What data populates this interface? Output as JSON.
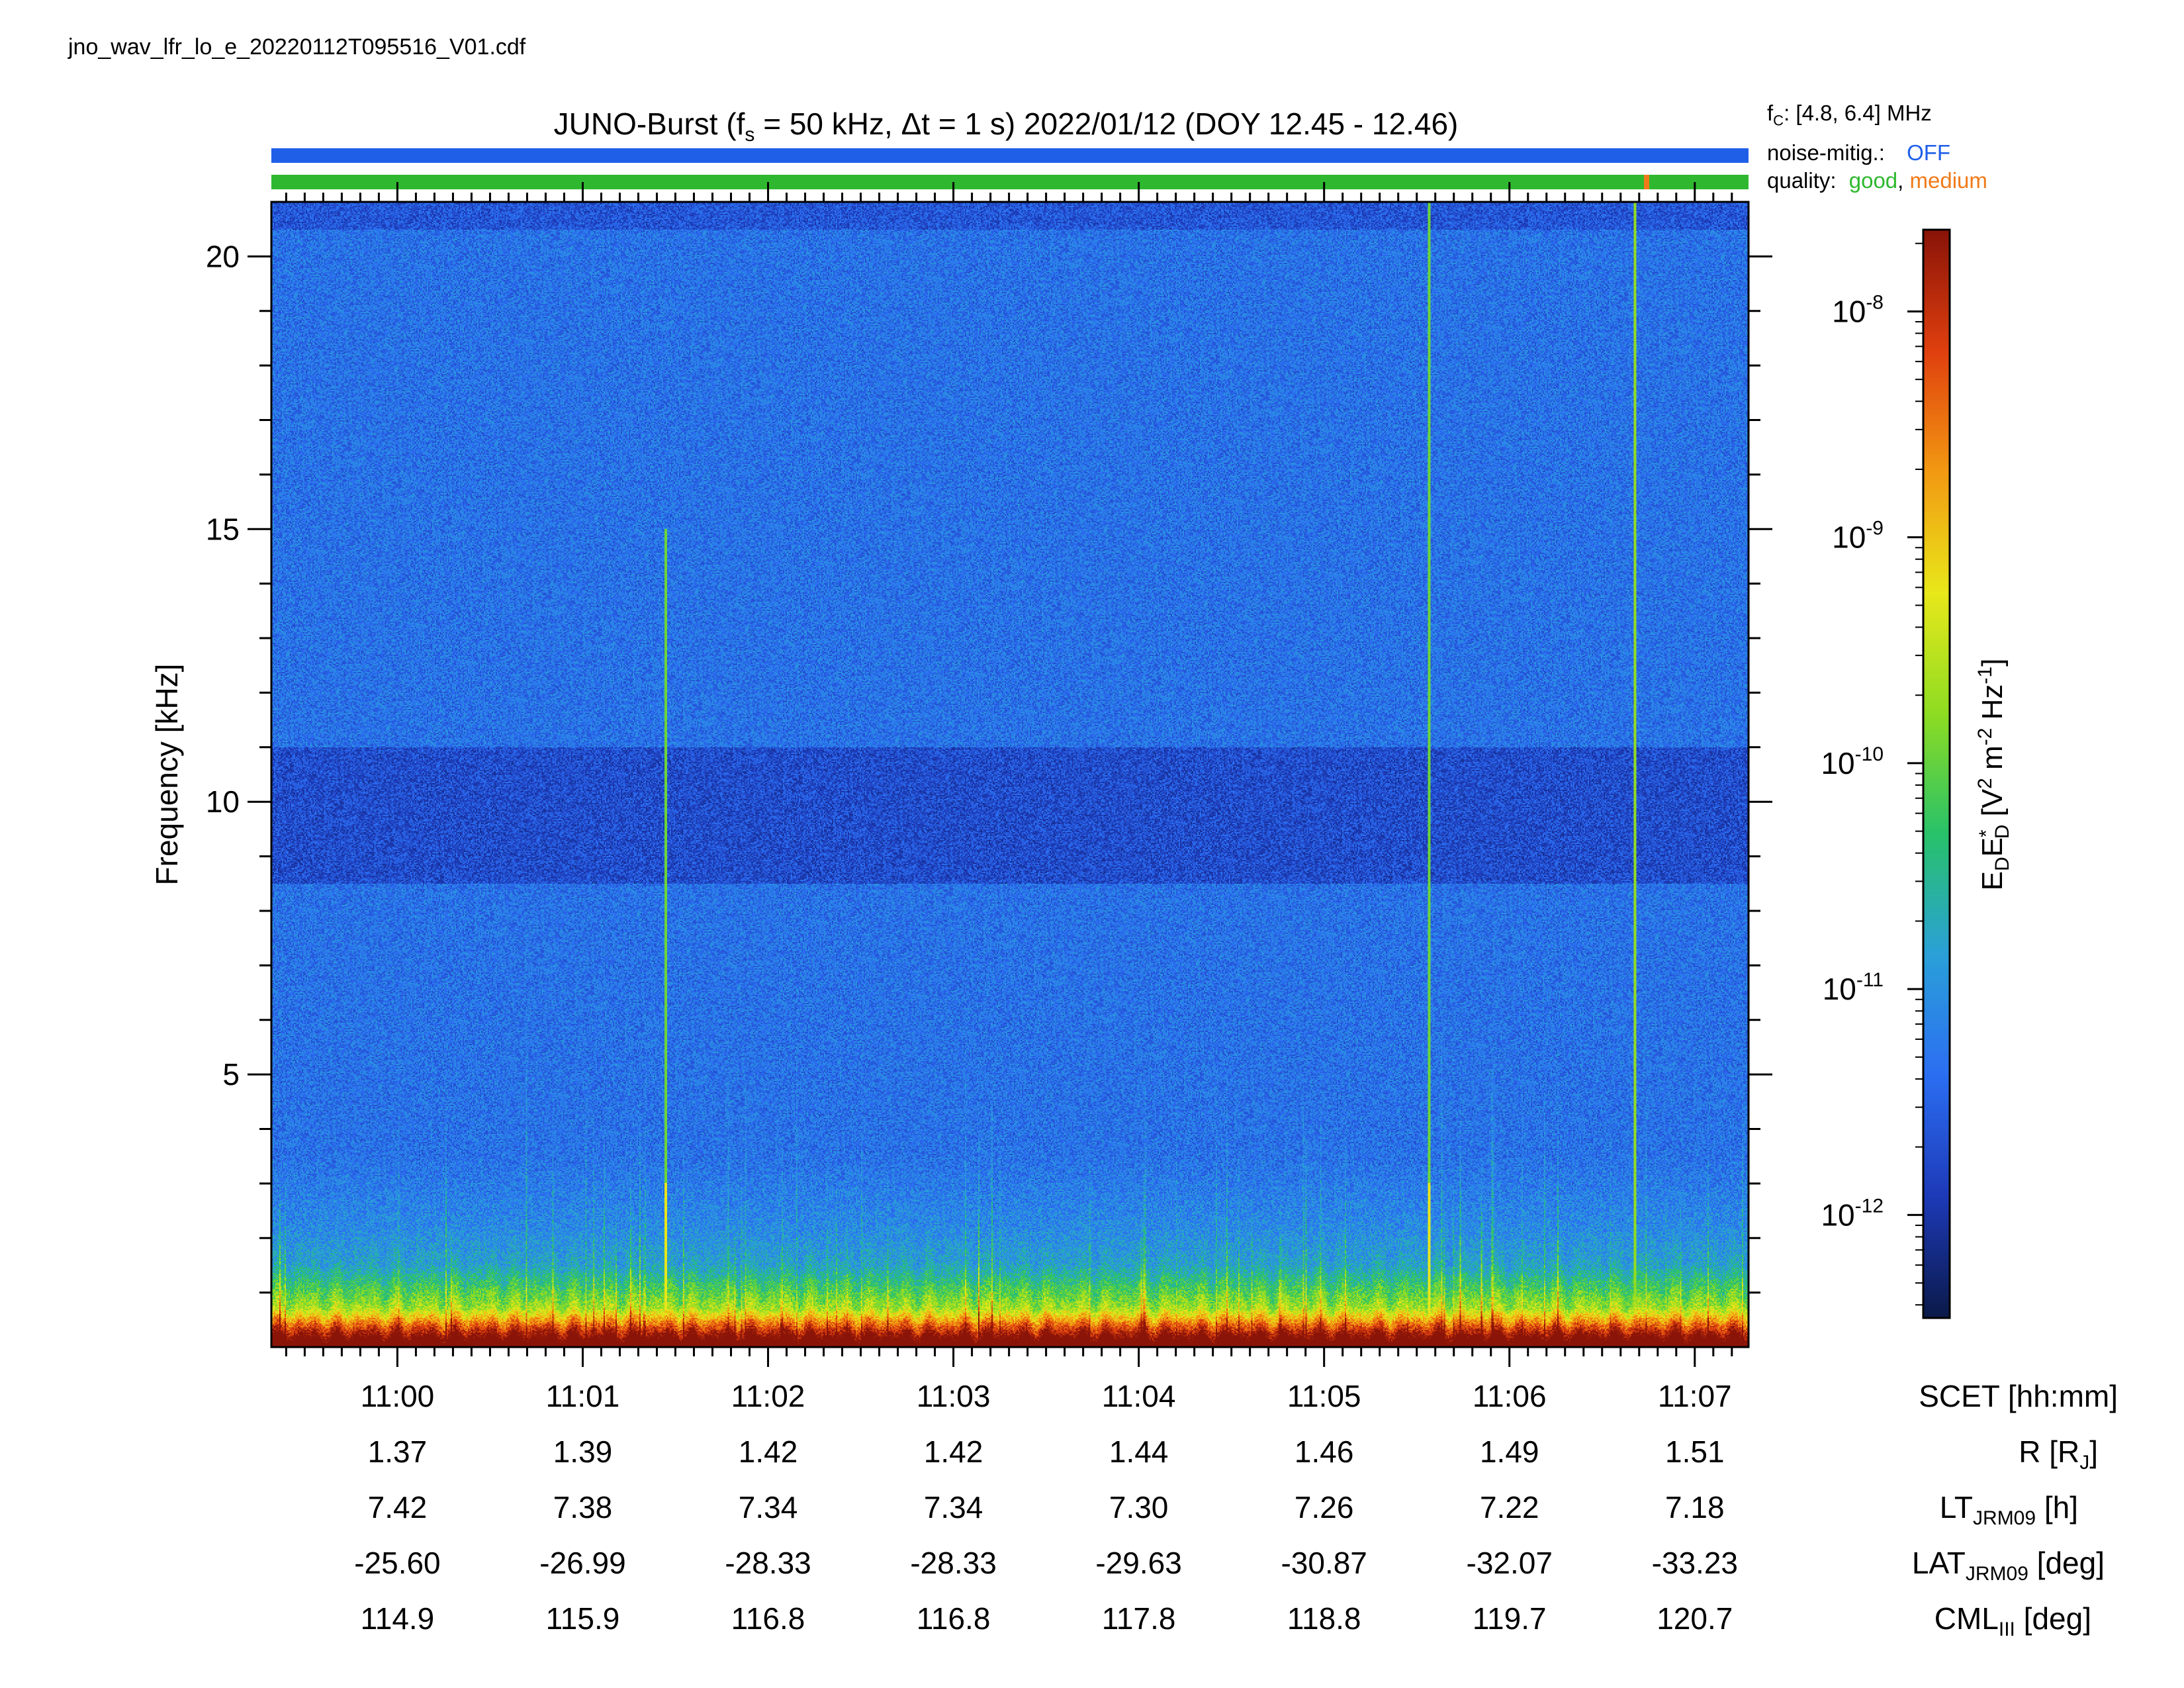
{
  "file_label": "jno_wav_lfr_lo_e_20220112T095516_V01.cdf",
  "header": {
    "title_prefix": "JUNO-Burst (f",
    "title_sub": "s",
    "title_mid": " = 50 kHz, Δt = 1 s)  2022/01/12 (DOY 12.45 - 12.46)",
    "fc_prefix": "f",
    "fc_sub": "C",
    "fc_value": ": [4.8, 6.4] MHz",
    "noise_label": "noise-mitig.:",
    "noise_value": "OFF",
    "quality_label": "quality:",
    "quality_good": "good",
    "quality_sep": ",",
    "quality_medium": "medium"
  },
  "colors": {
    "noise_bar": "#1f5fe8",
    "quality_good": "#2fb82f",
    "quality_medium": "#f07a1a",
    "noise_text": "#1f5fe8"
  },
  "ephemeris": {
    "labels": [
      "SCET [hh:mm]",
      "R [R",
      "LT",
      "LAT",
      "CML"
    ],
    "label_parts": {
      "scet": "SCET [hh:mm]",
      "r_main": "R [R",
      "r_sub": "J",
      "r_end": "]",
      "lt_main": "LT",
      "lt_sub": "JRM09",
      "lt_end": " [h]",
      "lat_main": "LAT",
      "lat_sub": "JRM09",
      "lat_end": " [deg]",
      "cml_main": "CML",
      "cml_sub": "III",
      "cml_end": " [deg]"
    },
    "rows": {
      "scet": [
        "11:00",
        "11:01",
        "11:02",
        "11:03",
        "11:04",
        "11:05",
        "11:06",
        "11:07"
      ],
      "r": [
        "1.37",
        "1.39",
        "1.42",
        "1.42",
        "1.44",
        "1.46",
        "1.49",
        "1.51"
      ],
      "lt": [
        "7.42",
        "7.38",
        "7.34",
        "7.34",
        "7.30",
        "7.26",
        "7.22",
        "7.18"
      ],
      "lat": [
        "-25.60",
        "-26.99",
        "-28.33",
        "-28.33",
        "-29.63",
        "-30.87",
        "-32.07",
        "-33.23"
      ],
      "cml": [
        "114.9",
        "115.9",
        "116.8",
        "116.8",
        "117.8",
        "118.8",
        "119.7",
        "120.7"
      ]
    }
  },
  "chart_data": {
    "type": "heatmap",
    "title": "JUNO-Burst (fs = 50 kHz, Δt = 1 s)  2022/01/12 (DOY 12.45 - 12.46)",
    "xlabel": "SCET [hh:mm]",
    "ylabel": "Frequency [kHz]",
    "x_ticks": [
      "11:00",
      "11:01",
      "11:02",
      "11:03",
      "11:04",
      "11:05",
      "11:06",
      "11:07"
    ],
    "xlim_minutes": [
      59.32,
      67.29
    ],
    "x_tick_minutes": [
      60,
      61,
      62,
      63,
      64,
      65,
      66,
      67
    ],
    "ylim": [
      0,
      21
    ],
    "y_ticks": [
      5,
      10,
      15,
      20
    ],
    "y_tick_labels": [
      "5",
      "10",
      "15",
      "20"
    ],
    "colorbar": {
      "label_main": "E",
      "label": "EDED* [V2 m-2 Hz-1]",
      "scale": "log",
      "range": [
        3.5e-13,
        2.3e-08
      ],
      "ticks": [
        1e-12,
        1e-11,
        1e-10,
        1e-09,
        1e-08
      ],
      "tick_exponents": [
        "-12",
        "-11",
        "-10",
        "-9",
        "-8"
      ],
      "colormap": [
        "#0b1a4a",
        "#1d3ab8",
        "#2b6ef2",
        "#2aa0d8",
        "#28c26a",
        "#8edc22",
        "#e8e81a",
        "#f29a12",
        "#e0400e",
        "#8a1408"
      ]
    },
    "features": {
      "vertical_lines_minutes": [
        61.44,
        65.56,
        66.67
      ],
      "dark_band_khz": [
        8.5,
        11.0
      ]
    }
  }
}
